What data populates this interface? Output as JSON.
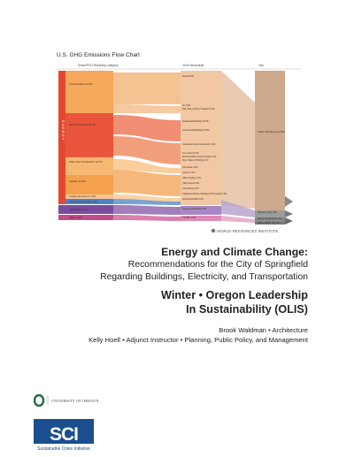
{
  "chart": {
    "title": "U.S. GHG Emissions Flow Chart",
    "col1": "Sector/PCG Reporting Category",
    "col2": "End Use/Activity",
    "col3": "Gas",
    "energy_label": "E N E R G Y",
    "sectors": [
      {
        "label": "Transportation",
        "value": "31.3%"
      },
      {
        "label": "Electricity & Heat",
        "value": "32.4%"
      },
      {
        "label": "Other Fuel Combustion",
        "value": "12.7%"
      },
      {
        "label": "Industry",
        "value": "10.3%"
      },
      {
        "label": "Fugitive Emissions",
        "value": "1.9%"
      },
      {
        "label": "Industrial Processes",
        "value": "3.9%"
      },
      {
        "label": "Agriculture",
        "value": "7.1%"
      },
      {
        "label": "Waste",
        "value": "2.9%"
      }
    ],
    "end_uses": [
      {
        "label": "Road",
        "value": "25.4%"
      },
      {
        "label": "Air",
        "value": "2.9%"
      },
      {
        "label": "Rail, Ship, & Other Transport",
        "value": "2.3%"
      },
      {
        "label": "Residential Buildings",
        "value": "15.3%"
      },
      {
        "label": "Commercial Buildings",
        "value": "15.6%"
      },
      {
        "label": "Unallocated Fuel Combustion",
        "value": "3.6%"
      },
      {
        "label": "Iron & Steel",
        "value": "1.5%"
      },
      {
        "label": "Aluminum/Non-Ferrous Metals",
        "value": "0.4%"
      },
      {
        "label": "Pulp, Paper & Printing",
        "value": "1.1%"
      },
      {
        "label": "Chemicals",
        "value": "4.3%"
      },
      {
        "label": "Cement",
        "value": "1.4%"
      },
      {
        "label": "Other Industry",
        "value": "1.4%"
      },
      {
        "label": "T&D Losses",
        "value": "0.6%"
      },
      {
        "label": "Coal Mining",
        "value": "0.3%"
      },
      {
        "label": "Oil/Gas Extraction, Refining & Processing",
        "value": "3.9%"
      },
      {
        "label": "Agricultural Soils",
        "value": "4.8%"
      },
      {
        "label": "Livestock & Manure",
        "value": "2.3%"
      },
      {
        "label": "Landfills",
        "value": "2.3%"
      }
    ],
    "gases": [
      {
        "label": "Carbon Dioxide (CO₂) 84%"
      },
      {
        "label": "Methane (CH₄) 9%"
      },
      {
        "label": "Nitrous Oxide (N₂O) 5%"
      },
      {
        "label": "HFCs, PFCs, SF₆ 2%"
      }
    ],
    "source": "WORLD RESOURCES INSTITUTE"
  },
  "title": {
    "main": "Energy and Climate Change:",
    "sub1": "Recommendations for the City of Springfield",
    "sub2": "Regarding Buildings, Electricity, and Transportation"
  },
  "term": {
    "line1": "Winter • Oregon Leadership",
    "line2": "In Sustainability (OLIS)"
  },
  "credits": {
    "line1": "Brook Waldman • Architecture",
    "line2": "Kelly Hoell • Adjunct Instructor • Planning, Public Policy, and Management"
  },
  "logos": {
    "uo": "UNIVERSITY OF OREGON",
    "sci": "SCI",
    "sci_full": "Sustainable Cities Initiative"
  },
  "colors": {
    "transport": "#f3a35a",
    "electricity": "#e8533a",
    "fuel": "#f6b26a",
    "industry": "#f28f3c",
    "fugitive": "#f9c58d",
    "process": "#4a7fc1",
    "agriculture": "#7a4a9c",
    "waste": "#c04a86",
    "co2": "#c9a98e"
  }
}
